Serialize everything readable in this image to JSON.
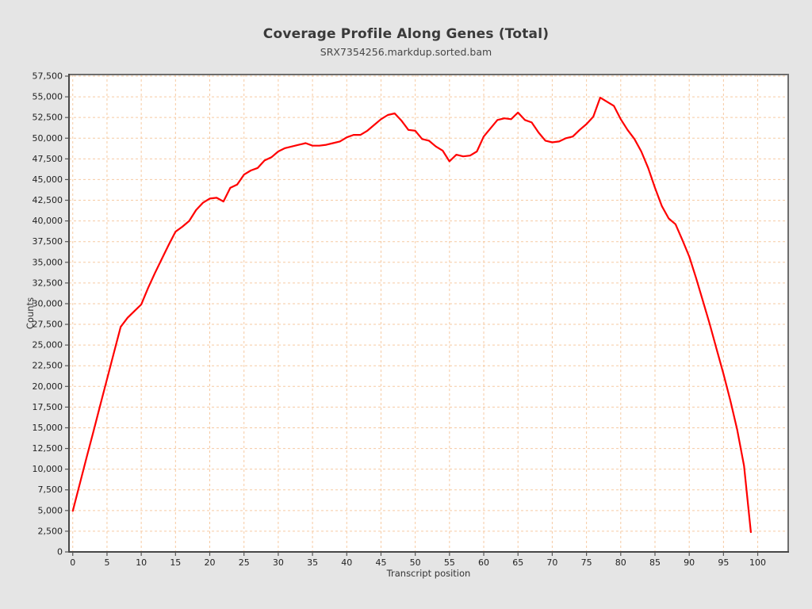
{
  "page": {
    "background": "#e5e5e5"
  },
  "chart_data": {
    "type": "line",
    "title": "Coverage Profile Along Genes (Total)",
    "subtitle": "SRX7354256.markdup.sorted.bam",
    "xlabel": "Transcript position",
    "ylabel": "Counts",
    "xlim": [
      -0.55,
      104.45
    ],
    "ylim": [
      0,
      57500
    ],
    "x_ticks": [
      0,
      5,
      10,
      15,
      20,
      25,
      30,
      35,
      40,
      45,
      50,
      55,
      60,
      65,
      70,
      75,
      80,
      85,
      90,
      95,
      100
    ],
    "y_ticks": [
      0,
      2500,
      5000,
      7500,
      10000,
      12500,
      15000,
      17500,
      20000,
      22500,
      25000,
      27500,
      30000,
      32500,
      35000,
      37500,
      40000,
      42500,
      45000,
      47500,
      50000,
      52500,
      55000,
      57500
    ],
    "grid": true,
    "legend": "none",
    "series": [
      {
        "name": "SRX7354256.markdup.sorted.bam",
        "color": "#ff0000",
        "x": [
          0,
          1,
          2,
          3,
          4,
          5,
          6,
          7,
          8,
          9,
          10,
          11,
          12,
          13,
          14,
          15,
          16,
          17,
          18,
          19,
          20,
          21,
          22,
          23,
          24,
          25,
          26,
          27,
          28,
          29,
          30,
          31,
          32,
          33,
          34,
          35,
          36,
          37,
          38,
          39,
          40,
          41,
          42,
          43,
          44,
          45,
          46,
          47,
          48,
          49,
          50,
          51,
          52,
          53,
          54,
          55,
          56,
          57,
          58,
          59,
          60,
          61,
          62,
          63,
          64,
          65,
          66,
          67,
          68,
          69,
          70,
          71,
          72,
          73,
          74,
          75,
          76,
          77,
          78,
          79,
          80,
          81,
          82,
          83,
          84,
          85,
          86,
          87,
          88,
          89,
          90,
          91,
          92,
          93,
          94,
          95,
          96,
          97,
          98,
          99
        ],
        "values": [
          4950,
          8150,
          11350,
          14500,
          17700,
          20850,
          24050,
          27200,
          28300,
          29100,
          29900,
          31900,
          33700,
          35400,
          37100,
          38700,
          39300,
          40000,
          41300,
          42200,
          42700,
          42800,
          42350,
          44000,
          44400,
          45600,
          46100,
          46400,
          47300,
          47700,
          48400,
          48800,
          49000,
          49200,
          49400,
          49100,
          49100,
          49200,
          49400,
          49600,
          50100,
          50400,
          50400,
          50900,
          51600,
          52300,
          52800,
          53000,
          52100,
          51000,
          50900,
          49900,
          49700,
          49000,
          48500,
          47200,
          48000,
          47800,
          47900,
          48400,
          50200,
          51200,
          52200,
          52400,
          52300,
          53100,
          52200,
          51900,
          50700,
          49700,
          49500,
          49600,
          50000,
          50200,
          51000,
          51700,
          52600,
          54900,
          54400,
          53900,
          52300,
          51000,
          49900,
          48400,
          46400,
          44000,
          41800,
          40300,
          39600,
          37700,
          35700,
          33100,
          30300,
          27500,
          24500,
          21500,
          18300,
          14800,
          10400,
          2400
        ]
      }
    ],
    "colors": {
      "line": "#ff0000",
      "grid": "#f6caa2",
      "plot_background": "#ffffff",
      "page_background": "#e5e5e5",
      "border": "#6d6d6d",
      "axis": "#474747",
      "tick_text": "#222222"
    }
  }
}
